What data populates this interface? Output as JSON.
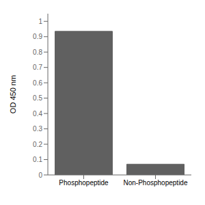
{
  "chart_data": {
    "type": "bar",
    "categories": [
      "Phosphopeptide",
      "Non-Phosphopeptide"
    ],
    "values": [
      0.935,
      0.07
    ],
    "color": "#606060",
    "ylabel": "OD 450 nm",
    "ylim": [
      0,
      1.05
    ],
    "yticks": [
      0,
      0.1,
      0.2,
      0.3,
      0.4,
      0.5,
      0.6,
      0.7,
      0.8,
      0.9,
      1
    ],
    "grid": false
  }
}
